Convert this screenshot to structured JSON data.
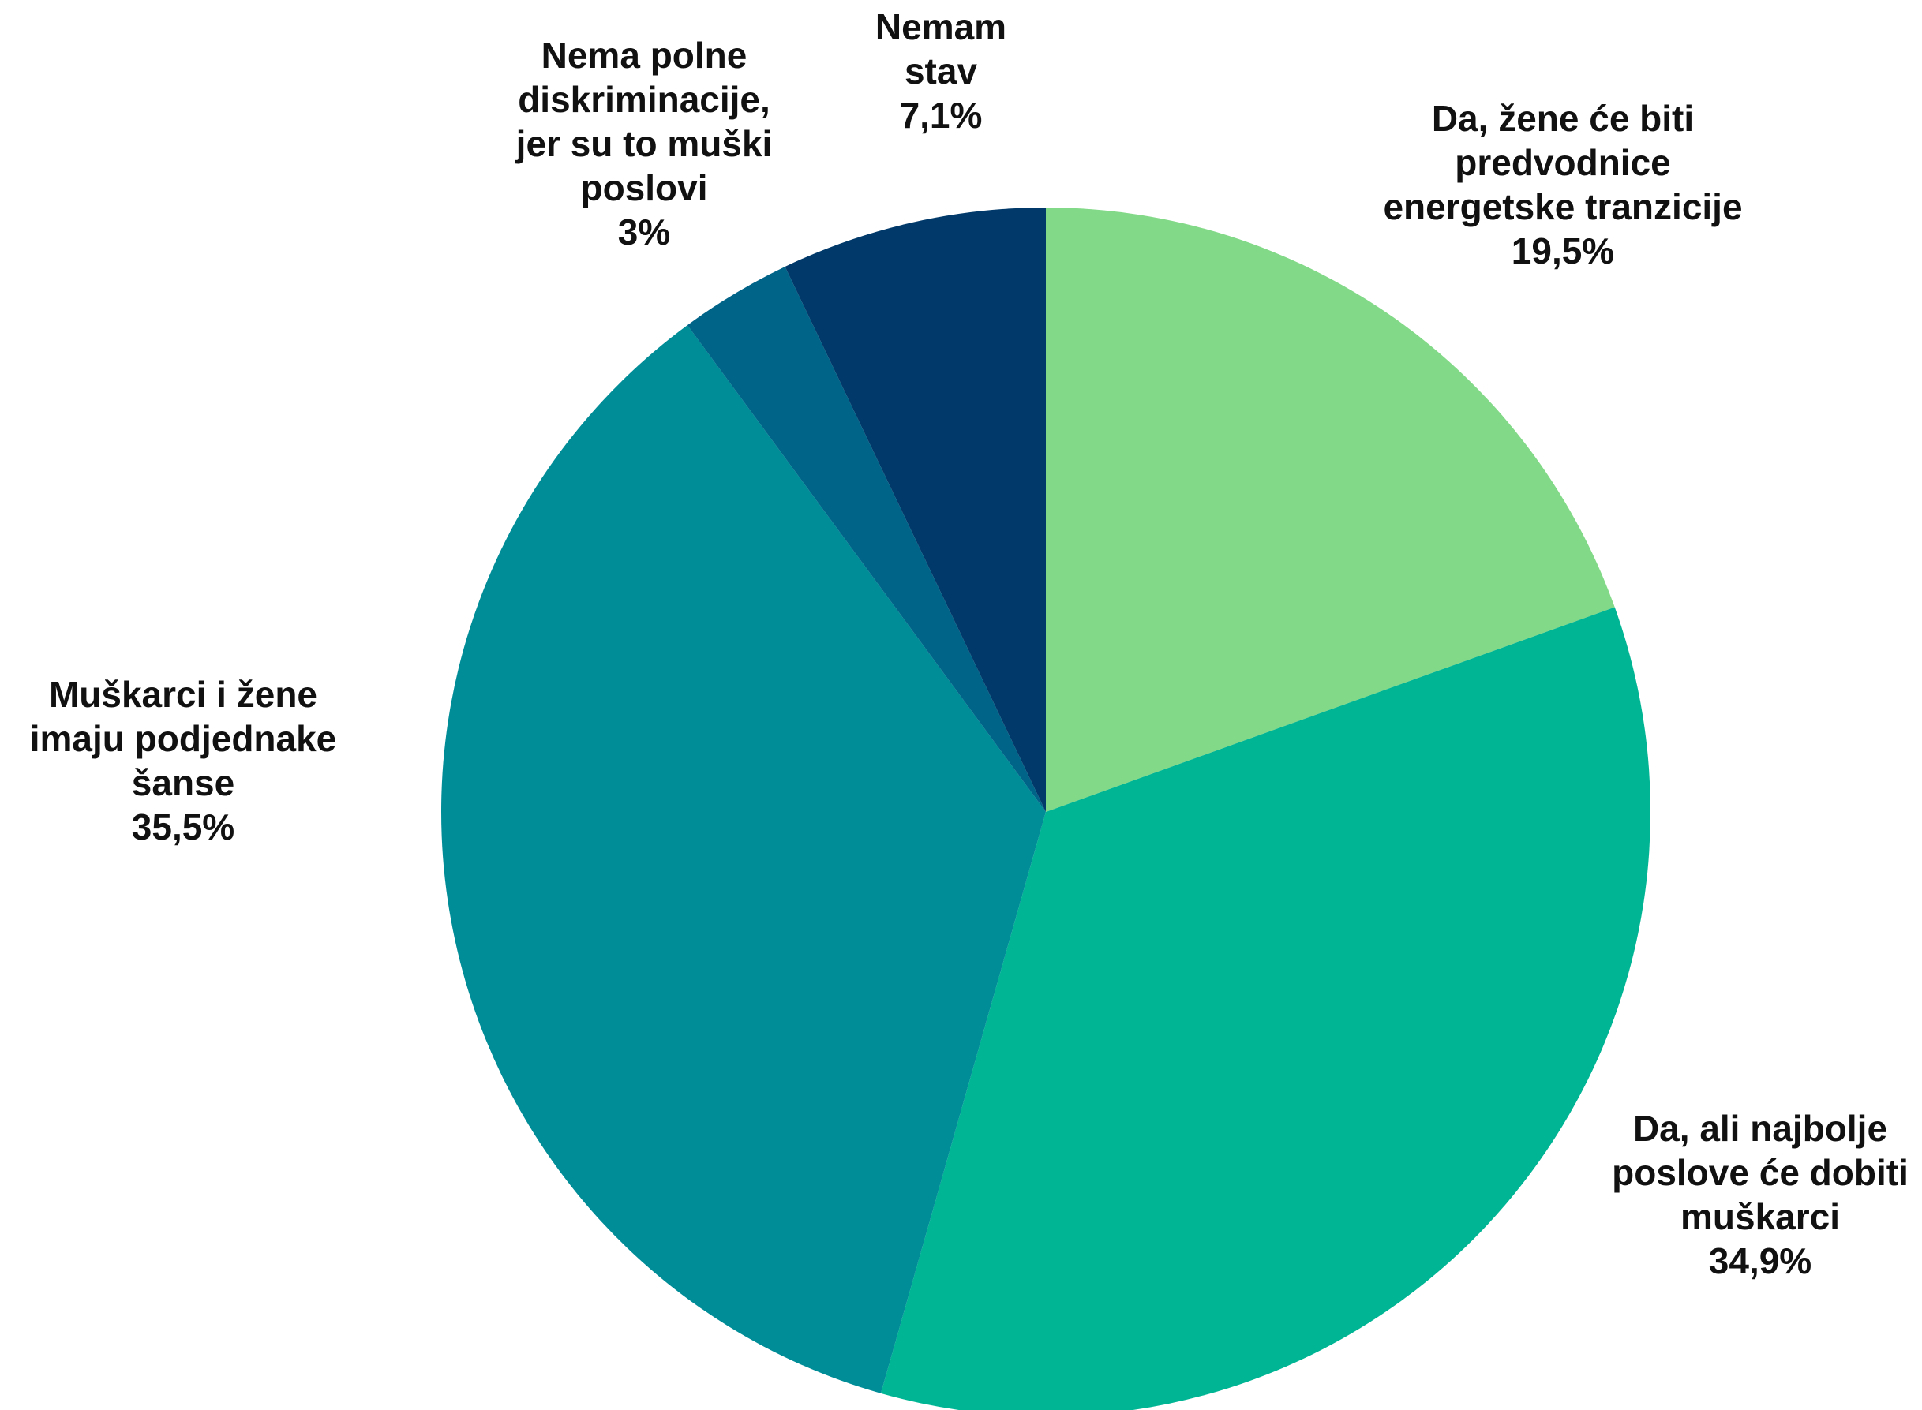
{
  "chart_data": {
    "type": "pie",
    "title": "",
    "start_angle_deg": 0,
    "direction": "clockwise",
    "slices": [
      {
        "label_lines": [
          "Da, žene će biti",
          "predvodnice",
          "energetske tranzicije"
        ],
        "value": 19.5,
        "value_label": "19,5%",
        "color": "#82d987"
      },
      {
        "label_lines": [
          "Da, ali najbolje",
          "poslove će dobiti",
          "muškarci"
        ],
        "value": 34.9,
        "value_label": "34,9%",
        "color": "#00b594"
      },
      {
        "label_lines": [
          "Muškarci i žene",
          "imaju podjednake",
          "šanse"
        ],
        "value": 35.5,
        "value_label": "35,5%",
        "color": "#008d98"
      },
      {
        "label_lines": [
          "Nema polne",
          "diskriminacije,",
          "jer su to muški",
          "poslovi"
        ],
        "value": 3,
        "value_label": "3%",
        "color": "#006489"
      },
      {
        "label_lines": [
          "Nemam",
          "stav"
        ],
        "value": 7.1,
        "value_label": "7,1%",
        "color": "#013a6a"
      }
    ]
  }
}
